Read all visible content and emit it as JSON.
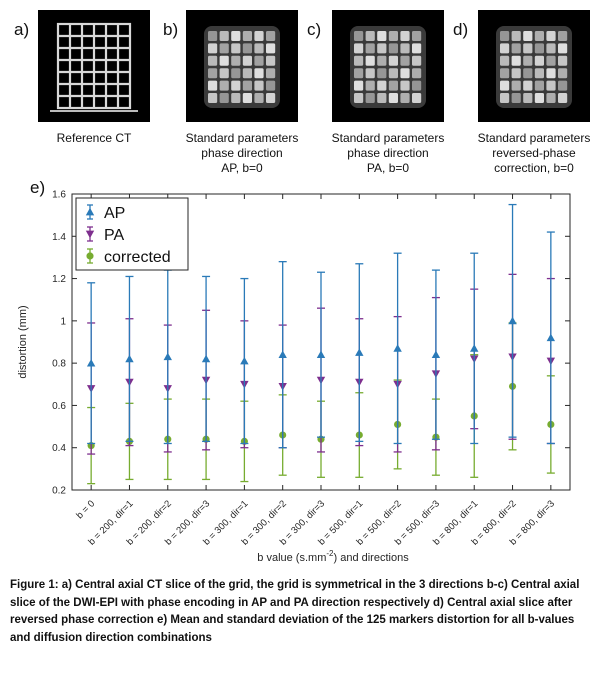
{
  "panels": [
    {
      "letter": "a)",
      "caption": [
        "Reference CT"
      ]
    },
    {
      "letter": "b)",
      "caption": [
        "Standard parameters",
        "phase direction",
        "AP, b=0"
      ]
    },
    {
      "letter": "c)",
      "caption": [
        "Standard parameters",
        "phase direction",
        "PA, b=0"
      ]
    },
    {
      "letter": "d)",
      "caption": [
        "Standard parameters",
        "reversed-phase",
        "correction, b=0"
      ]
    }
  ],
  "chart_letter": "e)",
  "chart_data": {
    "type": "scatter",
    "subtype": "errorbar",
    "title": "",
    "xlabel_main": "b value (s.mm",
    "xlabel_sup": "-2",
    "xlabel_tail": ") and directions",
    "ylabel": "distortion (mm)",
    "ylim": [
      0.2,
      1.6
    ],
    "yticks": [
      "0.2",
      "0.4",
      "0.6",
      "0.8",
      "1",
      "1.2",
      "1.4",
      "1.6"
    ],
    "ytick_values": [
      0.2,
      0.4,
      0.6,
      0.8,
      1.0,
      1.2,
      1.4,
      1.6
    ],
    "grid": false,
    "legend_position": "top-left",
    "categories": [
      "b = 0",
      "b = 200, dir=1",
      "b = 200, dir=2",
      "b = 200, dir=3",
      "b = 300, dir=1",
      "b = 300, dir=2",
      "b = 300, dir=3",
      "b = 500, dir=1",
      "b = 500, dir=2",
      "b = 500, dir=3",
      "b = 800, dir=1",
      "b = 800, dir=2",
      "b = 800, dir=3"
    ],
    "series": [
      {
        "name": "AP",
        "marker": "triangle-up",
        "color": "#2a7ab8",
        "mean": [
          0.8,
          0.82,
          0.83,
          0.82,
          0.81,
          0.84,
          0.84,
          0.85,
          0.87,
          0.84,
          0.87,
          1.0,
          0.92
        ],
        "std": [
          0.38,
          0.39,
          0.41,
          0.39,
          0.39,
          0.44,
          0.39,
          0.42,
          0.45,
          0.4,
          0.45,
          0.55,
          0.5
        ]
      },
      {
        "name": "PA",
        "marker": "triangle-down",
        "color": "#7e2f8e",
        "mean": [
          0.68,
          0.71,
          0.68,
          0.72,
          0.7,
          0.69,
          0.72,
          0.71,
          0.7,
          0.75,
          0.82,
          0.83,
          0.81
        ],
        "std": [
          0.31,
          0.3,
          0.3,
          0.33,
          0.3,
          0.29,
          0.34,
          0.3,
          0.32,
          0.36,
          0.33,
          0.39,
          0.39
        ]
      },
      {
        "name": "corrected",
        "marker": "circle",
        "color": "#77ac30",
        "mean": [
          0.41,
          0.43,
          0.44,
          0.44,
          0.43,
          0.46,
          0.44,
          0.46,
          0.51,
          0.45,
          0.55,
          0.69,
          0.51
        ],
        "std": [
          0.18,
          0.18,
          0.19,
          0.19,
          0.19,
          0.19,
          0.18,
          0.2,
          0.21,
          0.18,
          0.29,
          0.3,
          0.23
        ]
      }
    ]
  },
  "figure_caption": "Figure 1: a) Central axial CT slice of the grid, the grid is symmetrical in the 3 directions    b-c) Central axial slice of the DWI-EPI with phase encoding in AP and PA direction respectively d) Central axial slice after reversed phase correction e) Mean and standard deviation of the 125 markers distortion for all b-values and diffusion direction combinations"
}
